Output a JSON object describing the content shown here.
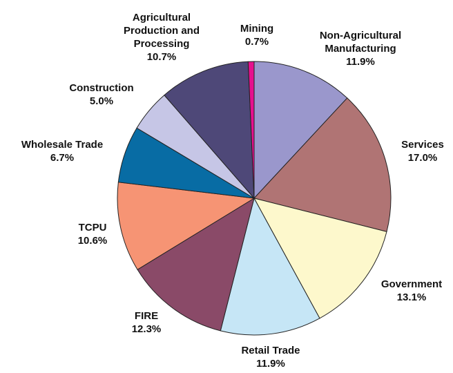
{
  "chart_data": {
    "type": "pie",
    "categories": [
      "Non-Agricultural Manufacturing",
      "Services",
      "Government",
      "Retail Trade",
      "FIRE",
      "TCPU",
      "Wholesale Trade",
      "Construction",
      "Agricultural Production and Processing",
      "Mining"
    ],
    "values": [
      11.9,
      17.0,
      13.1,
      11.9,
      12.3,
      10.6,
      6.7,
      5.0,
      10.7,
      0.7
    ],
    "value_labels": [
      "11.9%",
      "17.0%",
      "13.1%",
      "11.9%",
      "12.3%",
      "10.6%",
      "6.7%",
      "5.0%",
      "10.7%",
      "0.7%"
    ],
    "colors": [
      "#9a97cc",
      "#b07474",
      "#fdf8cc",
      "#c6e6f6",
      "#8a4a68",
      "#f69474",
      "#086ca4",
      "#c6c6e6",
      "#4e4878",
      "#e6108e"
    ]
  }
}
